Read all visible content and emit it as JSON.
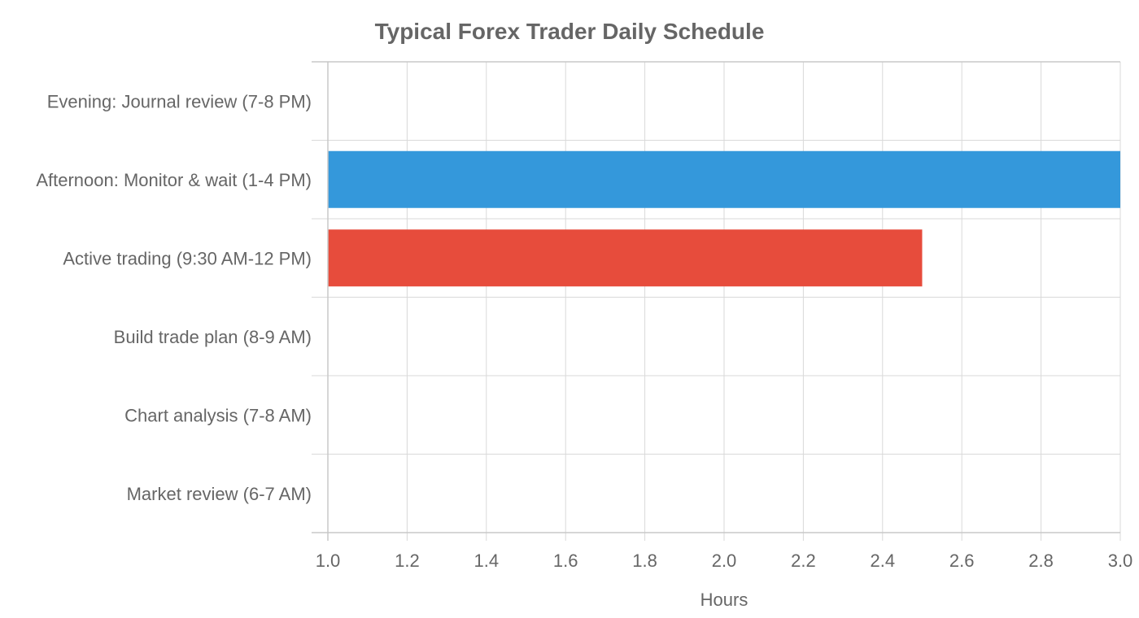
{
  "chart_data": {
    "type": "bar",
    "orientation": "horizontal",
    "title": "Typical Forex Trader Daily Schedule",
    "xlabel": "Hours",
    "ylabel": "",
    "xlim": [
      1.0,
      3.0
    ],
    "xticks": [
      "1.0",
      "1.2",
      "1.4",
      "1.6",
      "1.8",
      "2.0",
      "2.2",
      "2.4",
      "2.6",
      "2.8",
      "3.0"
    ],
    "grid": true,
    "legend": "none",
    "categories": [
      "Evening: Journal review (7-8 PM)",
      "Afternoon: Monitor & wait (1-4 PM)",
      "Active trading (9:30 AM-12 PM)",
      "Build trade plan (8-9 AM)",
      "Chart analysis (7-8 AM)",
      "Market review (6-7 AM)"
    ],
    "values": [
      1.0,
      3.0,
      2.5,
      1.0,
      1.0,
      1.0
    ],
    "colors": [
      "#9b59b6",
      "#3498db",
      "#e74c3c",
      "#f39c12",
      "#2ecc71",
      "#1abc9c"
    ]
  }
}
